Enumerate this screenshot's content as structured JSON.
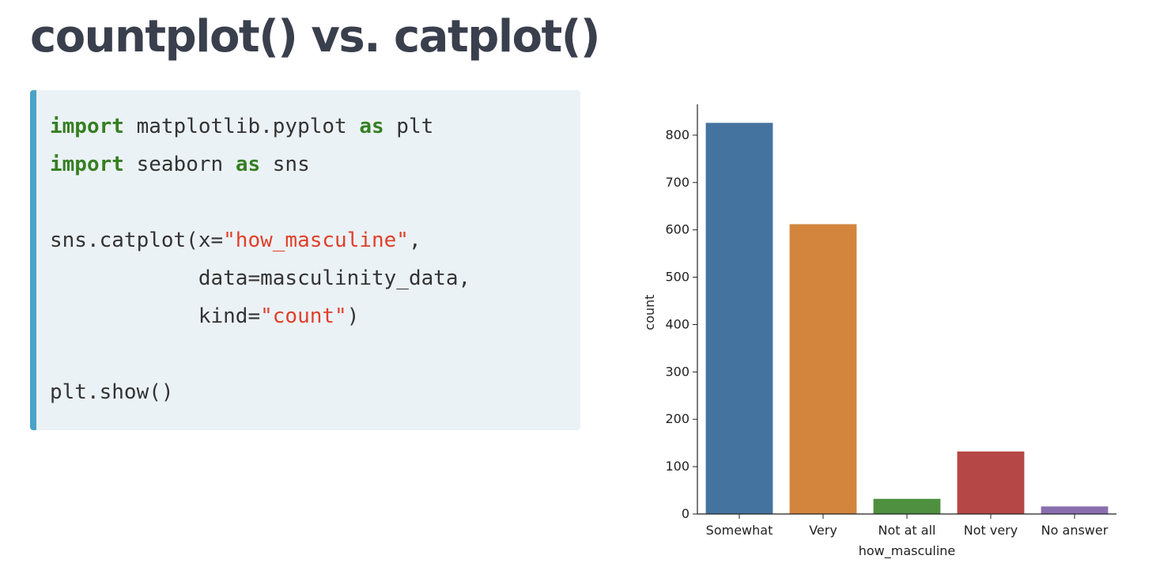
{
  "slide": {
    "title": "countplot() vs. catplot()"
  },
  "code": {
    "lines": [
      [
        {
          "t": "import",
          "c": "kw"
        },
        {
          "t": " matplotlib.pyplot "
        },
        {
          "t": "as",
          "c": "kw"
        },
        {
          "t": " plt"
        }
      ],
      [
        {
          "t": "import",
          "c": "kw"
        },
        {
          "t": " seaborn "
        },
        {
          "t": "as",
          "c": "kw"
        },
        {
          "t": " sns"
        }
      ],
      [],
      [
        {
          "t": "sns.catplot(x="
        },
        {
          "t": "\"how_masculine\"",
          "c": "str"
        },
        {
          "t": ","
        }
      ],
      [
        {
          "t": "            data=masculinity_data,"
        }
      ],
      [
        {
          "t": "            kind="
        },
        {
          "t": "\"count\"",
          "c": "str"
        },
        {
          "t": ")"
        }
      ],
      [],
      [
        {
          "t": "plt.show()"
        }
      ]
    ],
    "colors": {
      "keyword": "#367f23",
      "string": "#e0402a",
      "accent_bar": "#4aa3c8",
      "background": "#ebf2f6"
    }
  },
  "chart_data": {
    "type": "bar",
    "categories": [
      "Somewhat",
      "Very",
      "Not at all",
      "Not very",
      "No answer"
    ],
    "values": [
      826,
      612,
      32,
      132,
      16
    ],
    "colors": [
      "#4473a0",
      "#d3853d",
      "#4e903f",
      "#b54746",
      "#8a6eb0"
    ],
    "xlabel": "how_masculine",
    "ylabel": "count",
    "yticks": [
      0,
      100,
      200,
      300,
      400,
      500,
      600,
      700,
      800
    ],
    "ylim": [
      0,
      865
    ],
    "grid": false
  }
}
